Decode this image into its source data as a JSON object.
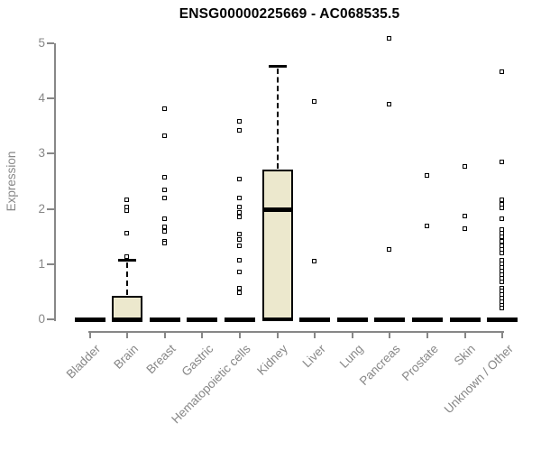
{
  "page": {
    "background": "#ffffff"
  },
  "chart_data": {
    "type": "boxplot",
    "title": "ENSG00000225669 - AC068535.5",
    "ylabel": "Expression",
    "xlabel": "",
    "ylim": [
      0,
      5
    ],
    "yticks": [
      0,
      1,
      2,
      3,
      4,
      5
    ],
    "grid": false,
    "legend": "none",
    "colors": {
      "box_fill": "#ece8cd",
      "box_border": "#000000",
      "median": "#000000",
      "outlier": "#000000",
      "axis": "#878787",
      "tick_label": "#878787",
      "title": "#000000",
      "background": "#ffffff"
    },
    "categories": [
      "Bladder",
      "Brain",
      "Breast",
      "Gastric",
      "Hematopoietic cells",
      "Kidney",
      "Liver",
      "Lung",
      "Pancreas",
      "Prostate",
      "Skin",
      "Unknown / Other"
    ],
    "series": [
      {
        "category": "Bladder",
        "whisker_low": 0,
        "q1": 0,
        "median": 0,
        "q3": 0,
        "whisker_high": 0,
        "outliers": []
      },
      {
        "category": "Brain",
        "whisker_low": 0,
        "q1": 0,
        "median": 0,
        "q3": 0.43,
        "whisker_high": 1.08,
        "outliers": [
          2.16,
          2.03,
          1.96,
          1.55,
          1.12
        ]
      },
      {
        "category": "Breast",
        "whisker_low": 0,
        "q1": 0,
        "median": 0,
        "q3": 0,
        "whisker_high": 0,
        "outliers": [
          3.8,
          3.32,
          2.57,
          2.33,
          2.19,
          1.81,
          1.67,
          1.59,
          1.4,
          1.37
        ]
      },
      {
        "category": "Gastric",
        "whisker_low": 0,
        "q1": 0,
        "median": 0,
        "q3": 0,
        "whisker_high": 0,
        "outliers": []
      },
      {
        "category": "Hematopoietic cells",
        "whisker_low": 0,
        "q1": 0,
        "median": 0,
        "q3": 0,
        "whisker_high": 0,
        "outliers": [
          3.58,
          3.42,
          2.54,
          2.19,
          2.03,
          1.93,
          1.84,
          1.54,
          1.44,
          1.32,
          1.07,
          0.85,
          0.56,
          0.47
        ]
      },
      {
        "category": "Kidney",
        "whisker_low": 0,
        "q1": 0,
        "median": 1.98,
        "q3": 2.71,
        "whisker_high": 4.59,
        "outliers": []
      },
      {
        "category": "Liver",
        "whisker_low": 0,
        "q1": 0,
        "median": 0,
        "q3": 0,
        "whisker_high": 0,
        "outliers": [
          3.94,
          1.05
        ]
      },
      {
        "category": "Lung",
        "whisker_low": 0,
        "q1": 0,
        "median": 0,
        "q3": 0,
        "whisker_high": 0,
        "outliers": []
      },
      {
        "category": "Pancreas",
        "whisker_low": 0,
        "q1": 0,
        "median": 0,
        "q3": 0,
        "whisker_high": 0,
        "outliers": [
          5.08,
          3.89,
          1.26
        ]
      },
      {
        "category": "Prostate",
        "whisker_low": 0,
        "q1": 0,
        "median": 0,
        "q3": 0,
        "whisker_high": 0,
        "outliers": [
          2.6,
          1.69
        ]
      },
      {
        "category": "Skin",
        "whisker_low": 0,
        "q1": 0,
        "median": 0,
        "q3": 0,
        "whisker_high": 0,
        "outliers": [
          2.76,
          1.86,
          1.63
        ]
      },
      {
        "category": "Unknown / Other",
        "whisker_low": 0,
        "q1": 0,
        "median": 0,
        "q3": 0,
        "whisker_high": 0,
        "outliers": [
          4.47,
          2.84,
          2.16,
          2.08,
          2.01,
          1.81,
          1.62,
          1.55,
          1.48,
          1.41,
          1.33,
          1.26,
          1.19,
          1.06,
          0.99,
          0.93,
          0.86,
          0.8,
          0.73,
          0.67,
          0.56,
          0.5,
          0.44,
          0.37,
          0.31,
          0.25,
          0.19
        ]
      }
    ]
  }
}
